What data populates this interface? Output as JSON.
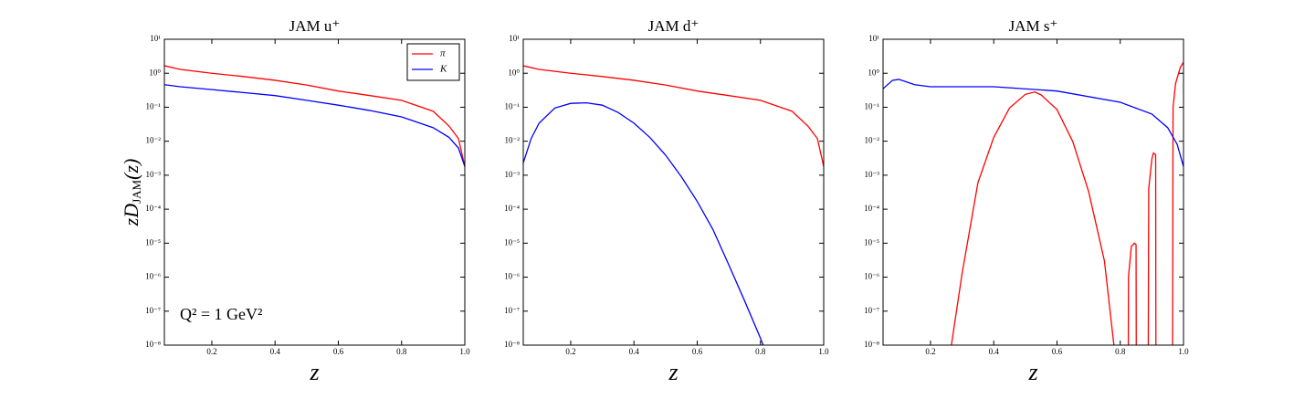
{
  "chart_data": [
    {
      "type": "line",
      "title": "JAM u⁺",
      "x_label": "z",
      "y_label": {
        "main": "zD",
        "sub": "JAM",
        "end": "(z)"
      },
      "annotation": "Q² = 1 GeV²",
      "legend": "upper right",
      "xlim": [
        0.05,
        1.0
      ],
      "ylim": [
        1e-08,
        10
      ],
      "log_y": true,
      "xticks": [
        0.2,
        0.4,
        0.6,
        0.8,
        {
          "value": 1.0,
          "label": "1.0"
        }
      ],
      "yticks": [
        {
          "value": 10,
          "label": "10¹"
        },
        {
          "value": 1,
          "label": "10⁰"
        },
        {
          "value": 0.1,
          "label": "10⁻¹"
        },
        {
          "value": 0.01,
          "label": "10⁻²"
        },
        {
          "value": 0.001,
          "label": "10⁻³"
        },
        {
          "value": 0.0001,
          "label": "10⁻⁴"
        },
        {
          "value": 1e-05,
          "label": "10⁻⁵"
        },
        {
          "value": 1e-06,
          "label": "10⁻⁶"
        },
        {
          "value": 1e-07,
          "label": "10⁻⁷"
        },
        {
          "value": 1e-08,
          "label": "10⁻⁸"
        }
      ],
      "x": [
        0.05,
        0.1,
        0.2,
        0.3,
        0.4,
        0.5,
        0.6,
        0.7,
        0.8,
        0.9,
        0.95,
        0.98,
        1.0
      ],
      "series": [
        {
          "name": "π",
          "color": "#ff0000",
          "values": [
            1.66,
            1.3,
            1.0,
            0.8,
            0.62,
            0.45,
            0.3,
            0.22,
            0.16,
            0.076,
            0.028,
            0.012,
            0.0018
          ]
        },
        {
          "name": "K",
          "color": "#0000ff",
          "values": [
            0.46,
            0.4,
            0.33,
            0.27,
            0.22,
            0.16,
            0.115,
            0.08,
            0.052,
            0.025,
            0.013,
            0.0063,
            0.0018
          ]
        }
      ]
    },
    {
      "type": "line",
      "title": "JAM d⁺",
      "x_label": "z",
      "xlim": [
        0.05,
        1.0
      ],
      "ylim": [
        1e-08,
        10
      ],
      "log_y": true,
      "xticks": [
        0.2,
        0.4,
        0.6,
        0.8,
        {
          "value": 1.0,
          "label": "1.0"
        }
      ],
      "yticks": [
        {
          "value": 10,
          "label": "10¹"
        },
        {
          "value": 1,
          "label": "10⁰"
        },
        {
          "value": 0.1,
          "label": "10⁻¹"
        },
        {
          "value": 0.01,
          "label": "10⁻²"
        },
        {
          "value": 0.001,
          "label": "10⁻³"
        },
        {
          "value": 0.0001,
          "label": "10⁻⁴"
        },
        {
          "value": 1e-05,
          "label": "10⁻⁵"
        },
        {
          "value": 1e-06,
          "label": "10⁻⁶"
        },
        {
          "value": 1e-07,
          "label": "10⁻⁷"
        },
        {
          "value": 1e-08,
          "label": "10⁻⁸"
        }
      ],
      "series": [
        {
          "name": "π",
          "color": "#ff0000",
          "x": [
            0.05,
            0.1,
            0.2,
            0.3,
            0.4,
            0.5,
            0.6,
            0.7,
            0.8,
            0.9,
            0.95,
            0.98,
            1.0
          ],
          "values": [
            1.66,
            1.3,
            1.0,
            0.8,
            0.62,
            0.45,
            0.3,
            0.22,
            0.16,
            0.076,
            0.028,
            0.012,
            0.0018
          ]
        },
        {
          "name": "K",
          "color": "#0000ff",
          "x": [
            0.05,
            0.075,
            0.1,
            0.15,
            0.2,
            0.25,
            0.3,
            0.35,
            0.4,
            0.45,
            0.5,
            0.55,
            0.6,
            0.65,
            0.7,
            0.75,
            0.8,
            0.85
          ],
          "values": [
            0.0023,
            0.012,
            0.034,
            0.095,
            0.13,
            0.135,
            0.115,
            0.07,
            0.034,
            0.013,
            0.0039,
            0.0009,
            0.00017,
            2.5e-05,
            2.3e-06,
            2e-07,
            1.6e-08,
            1e-09
          ]
        }
      ]
    },
    {
      "type": "line",
      "title": "JAM s⁺",
      "x_label": "z",
      "xlim": [
        0.05,
        1.0
      ],
      "ylim": [
        1e-08,
        10
      ],
      "log_y": true,
      "xticks": [
        0.2,
        0.4,
        0.6,
        0.8,
        {
          "value": 1.0,
          "label": "1.0"
        }
      ],
      "yticks": [
        {
          "value": 10,
          "label": "10¹"
        },
        {
          "value": 1,
          "label": "10⁰"
        },
        {
          "value": 0.1,
          "label": "10⁻¹"
        },
        {
          "value": 0.01,
          "label": "10⁻²"
        },
        {
          "value": 0.001,
          "label": "10⁻³"
        },
        {
          "value": 0.0001,
          "label": "10⁻⁴"
        },
        {
          "value": 1e-05,
          "label": "10⁻⁵"
        },
        {
          "value": 1e-06,
          "label": "10⁻⁶"
        },
        {
          "value": 1e-07,
          "label": "10⁻⁷"
        },
        {
          "value": 1e-08,
          "label": "10⁻⁸"
        }
      ],
      "series": [
        {
          "name": "π",
          "color": "#ff0000",
          "x": [
            0.25,
            0.3,
            0.35,
            0.4,
            0.45,
            0.5,
            0.53,
            0.55,
            0.6,
            0.65,
            0.7,
            0.75,
            0.78,
            0.79,
            0.825,
            0.826,
            0.835,
            0.845,
            0.85,
            0.851,
            0.888,
            0.89,
            0.9,
            0.905,
            0.912,
            0.913,
            0.965,
            0.967,
            0.975,
            0.99,
            1.0
          ],
          "values": [
            1e-09,
            1.3e-06,
            0.0006,
            0.013,
            0.095,
            0.24,
            0.28,
            0.23,
            0.085,
            0.0097,
            0.00033,
            3e-06,
            1e-08,
            1e-10,
            1e-10,
            1e-06,
            8e-06,
            1e-05,
            9e-06,
            1e-10,
            1e-10,
            0.0004,
            0.003,
            0.0045,
            0.004,
            1e-10,
            1e-10,
            0.1,
            0.5,
            1.5,
            2.1
          ]
        },
        {
          "name": "K",
          "color": "#0000ff",
          "x": [
            0.05,
            0.08,
            0.1,
            0.15,
            0.2,
            0.4,
            0.6,
            0.8,
            0.9,
            0.95,
            0.98,
            1.0
          ],
          "values": [
            0.35,
            0.62,
            0.66,
            0.46,
            0.4,
            0.4,
            0.3,
            0.14,
            0.063,
            0.025,
            0.0081,
            0.0018
          ]
        }
      ]
    }
  ]
}
